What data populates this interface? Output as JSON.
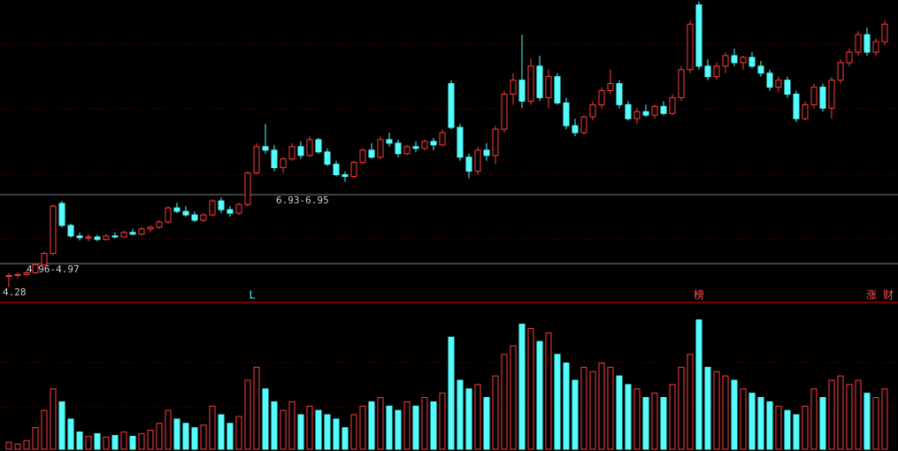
{
  "chart_data": {
    "type": "candlestick",
    "open": [
      4.6,
      4.62,
      4.65,
      4.7,
      4.93,
      5.25,
      6.68,
      6.05,
      5.75,
      5.7,
      5.72,
      5.65,
      5.75,
      5.72,
      5.85,
      5.8,
      5.95,
      6.0,
      6.15,
      6.55,
      6.45,
      6.35,
      6.2,
      6.35,
      6.75,
      6.5,
      6.4,
      6.65,
      7.55,
      8.3,
      8.2,
      7.7,
      7.95,
      8.3,
      8.05,
      8.5,
      8.15,
      7.8,
      7.5,
      7.45,
      7.85,
      8.2,
      8.0,
      8.5,
      8.4,
      8.1,
      8.3,
      8.25,
      8.45,
      8.35,
      10.1,
      8.85,
      8.0,
      7.6,
      8.2,
      8.05,
      8.8,
      9.8,
      10.2,
      9.6,
      10.6,
      9.7,
      10.3,
      9.55,
      8.9,
      8.7,
      9.15,
      9.5,
      9.9,
      10.1,
      9.5,
      9.1,
      9.3,
      9.2,
      9.45,
      9.25,
      9.7,
      10.5,
      12.35,
      10.6,
      10.3,
      10.6,
      10.9,
      10.7,
      10.85,
      10.6,
      10.4,
      10.0,
      10.2,
      9.8,
      9.1,
      9.5,
      10.0,
      9.4,
      10.2,
      10.7,
      11.0,
      11.5,
      11.0,
      11.3
    ],
    "high": [
      4.68,
      4.7,
      4.75,
      4.97,
      5.3,
      6.65,
      6.75,
      6.1,
      5.85,
      5.8,
      5.78,
      5.8,
      5.85,
      5.9,
      5.95,
      6.0,
      6.05,
      6.2,
      6.6,
      6.7,
      6.6,
      6.45,
      6.4,
      6.8,
      6.85,
      6.6,
      6.7,
      7.6,
      8.4,
      8.95,
      8.35,
      8.0,
      8.4,
      8.45,
      8.6,
      8.55,
      8.25,
      7.9,
      7.6,
      7.9,
      8.25,
      8.4,
      8.6,
      8.7,
      8.5,
      8.35,
      8.45,
      8.5,
      8.55,
      8.8,
      10.2,
      8.95,
      8.1,
      8.3,
      8.4,
      8.9,
      9.9,
      10.4,
      11.5,
      10.8,
      10.9,
      10.5,
      10.4,
      9.7,
      9.1,
      9.2,
      9.6,
      10.0,
      10.5,
      10.2,
      9.6,
      9.4,
      9.5,
      9.5,
      9.6,
      9.8,
      10.6,
      11.9,
      12.45,
      10.8,
      10.7,
      11.0,
      11.1,
      10.9,
      11.0,
      10.75,
      10.5,
      10.3,
      10.3,
      9.9,
      9.6,
      10.1,
      10.1,
      10.3,
      10.8,
      11.1,
      11.6,
      11.7,
      11.4,
      11.9
    ],
    "low": [
      4.28,
      4.55,
      4.6,
      4.66,
      4.9,
      5.2,
      6.0,
      5.7,
      5.62,
      5.6,
      5.6,
      5.62,
      5.68,
      5.7,
      5.78,
      5.76,
      5.85,
      5.95,
      6.1,
      6.4,
      6.3,
      6.15,
      6.15,
      6.3,
      6.4,
      6.3,
      6.35,
      6.6,
      7.5,
      8.1,
      7.6,
      7.55,
      7.9,
      7.95,
      8.0,
      8.1,
      7.75,
      7.45,
      7.3,
      7.4,
      7.8,
      7.95,
      7.95,
      8.3,
      8.0,
      8.05,
      8.15,
      8.2,
      8.2,
      8.3,
      8.8,
      7.9,
      7.4,
      7.5,
      7.9,
      7.8,
      8.7,
      9.5,
      9.4,
      9.5,
      9.6,
      9.4,
      9.5,
      8.8,
      8.6,
      8.65,
      9.05,
      9.4,
      9.8,
      9.4,
      9.05,
      8.95,
      9.15,
      9.1,
      9.2,
      9.2,
      9.6,
      10.4,
      10.5,
      10.2,
      10.2,
      10.4,
      10.6,
      10.5,
      10.55,
      10.3,
      9.9,
      9.85,
      9.7,
      9.0,
      9.05,
      9.4,
      9.3,
      9.1,
      10.1,
      10.6,
      10.9,
      10.9,
      10.9,
      11.2
    ],
    "close": [
      4.62,
      4.65,
      4.7,
      4.93,
      5.25,
      6.6,
      6.05,
      5.75,
      5.7,
      5.72,
      5.65,
      5.75,
      5.72,
      5.85,
      5.8,
      5.95,
      6.0,
      6.15,
      6.55,
      6.45,
      6.35,
      6.2,
      6.35,
      6.75,
      6.5,
      6.4,
      6.65,
      7.55,
      8.3,
      8.2,
      7.7,
      7.95,
      8.3,
      8.05,
      8.5,
      8.15,
      7.8,
      7.5,
      7.45,
      7.85,
      8.2,
      8.0,
      8.5,
      8.4,
      8.1,
      8.3,
      8.25,
      8.45,
      8.35,
      8.7,
      8.85,
      8.0,
      7.6,
      8.2,
      8.05,
      8.8,
      9.8,
      10.2,
      9.6,
      10.6,
      9.7,
      10.3,
      9.55,
      8.9,
      8.7,
      9.15,
      9.5,
      9.9,
      10.1,
      9.5,
      9.1,
      9.3,
      9.2,
      9.45,
      9.25,
      9.7,
      10.5,
      11.8,
      10.6,
      10.3,
      10.6,
      10.9,
      10.7,
      10.85,
      10.6,
      10.4,
      10.0,
      10.2,
      9.8,
      9.1,
      9.5,
      10.0,
      9.4,
      10.2,
      10.7,
      11.0,
      11.5,
      11.0,
      11.3,
      11.8
    ],
    "volume": [
      8,
      6,
      10,
      25,
      45,
      70,
      55,
      35,
      20,
      15,
      18,
      14,
      16,
      20,
      15,
      18,
      22,
      30,
      45,
      35,
      30,
      25,
      28,
      50,
      40,
      30,
      38,
      80,
      95,
      70,
      55,
      45,
      55,
      40,
      50,
      45,
      40,
      35,
      25,
      40,
      50,
      55,
      60,
      50,
      45,
      55,
      50,
      60,
      55,
      65,
      130,
      80,
      70,
      75,
      60,
      85,
      110,
      120,
      145,
      140,
      125,
      135,
      110,
      100,
      80,
      95,
      90,
      100,
      95,
      85,
      75,
      70,
      60,
      65,
      60,
      75,
      95,
      110,
      150,
      95,
      90,
      85,
      80,
      70,
      65,
      60,
      55,
      50,
      45,
      40,
      50,
      70,
      60,
      80,
      85,
      75,
      80,
      65,
      60,
      70
    ],
    "ylim": [
      3.85,
      12.49
    ],
    "volume_ylim": [
      0,
      160
    ],
    "up_color": "#ff3c3c",
    "down_color": "#54fcfc",
    "annotations": [
      {
        "label": "4.28",
        "value": 4.28,
        "line": false
      },
      {
        "label": "4.96-4.97",
        "value": 4.96,
        "line": true
      },
      {
        "label": "6.93-6.95",
        "value": 6.93,
        "line": true
      }
    ],
    "markers": [
      {
        "label": "L",
        "color": "#54fcfc"
      },
      {
        "label": "榜",
        "color": "#ff5050"
      },
      {
        "label": "涨",
        "color": "#ff5050"
      },
      {
        "label": "财",
        "color": "#ff5050"
      }
    ]
  }
}
